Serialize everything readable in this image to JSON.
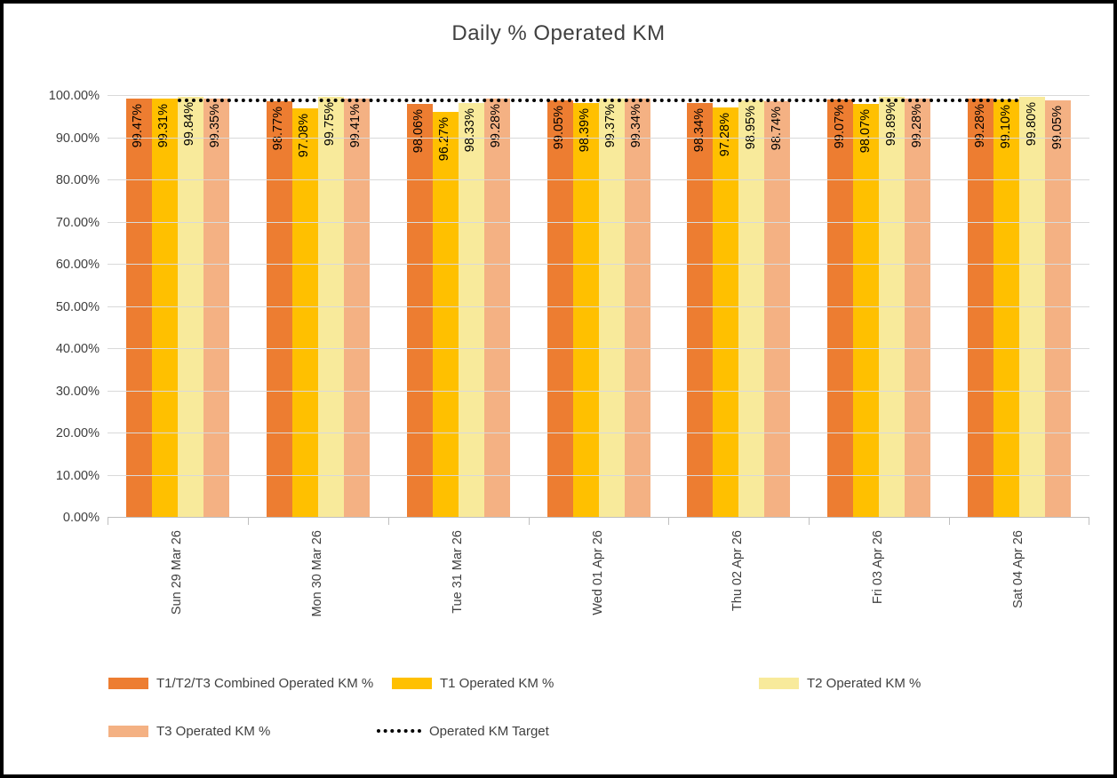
{
  "title": "Daily % Operated KM",
  "chart_data": {
    "type": "bar",
    "title": "Daily % Operated KM",
    "categories": [
      "Sun 29 Mar 26",
      "Mon 30 Mar 26",
      "Tue 31 Mar 26",
      "Wed 01 Apr 26",
      "Thu 02 Apr 26",
      "Fri 03 Apr 26",
      "Sat 04 Apr 26"
    ],
    "series": [
      {
        "name": "T1/T2/T3 Combined Operated KM %",
        "color": "#ED7D31",
        "values": [
          99.47,
          98.77,
          98.06,
          99.05,
          98.34,
          99.07,
          99.28
        ]
      },
      {
        "name": "T1 Operated KM %",
        "color": "#FFC000",
        "values": [
          99.31,
          97.08,
          96.27,
          98.39,
          97.28,
          98.07,
          99.1
        ]
      },
      {
        "name": "T2 Operated KM %",
        "color": "#F8EA9B",
        "values": [
          99.84,
          99.75,
          98.33,
          99.37,
          98.95,
          99.89,
          99.8
        ]
      },
      {
        "name": "T3 Operated KM %",
        "color": "#F4B183",
        "values": [
          99.35,
          99.41,
          99.28,
          99.34,
          98.74,
          99.28,
          99.05
        ]
      }
    ],
    "target_line": {
      "name": "Operated KM Target",
      "value": 99,
      "color": "#000000",
      "style": "dotted"
    },
    "yticks": [
      "0.00%",
      "10.00%",
      "20.00%",
      "30.00%",
      "40.00%",
      "50.00%",
      "60.00%",
      "70.00%",
      "80.00%",
      "90.00%",
      "100.00%"
    ],
    "ylim": [
      0,
      100
    ],
    "data_label_format": "0.00%",
    "data_labels_rotated": "bottom-up",
    "gridlines": true,
    "legend_position": "bottom"
  }
}
